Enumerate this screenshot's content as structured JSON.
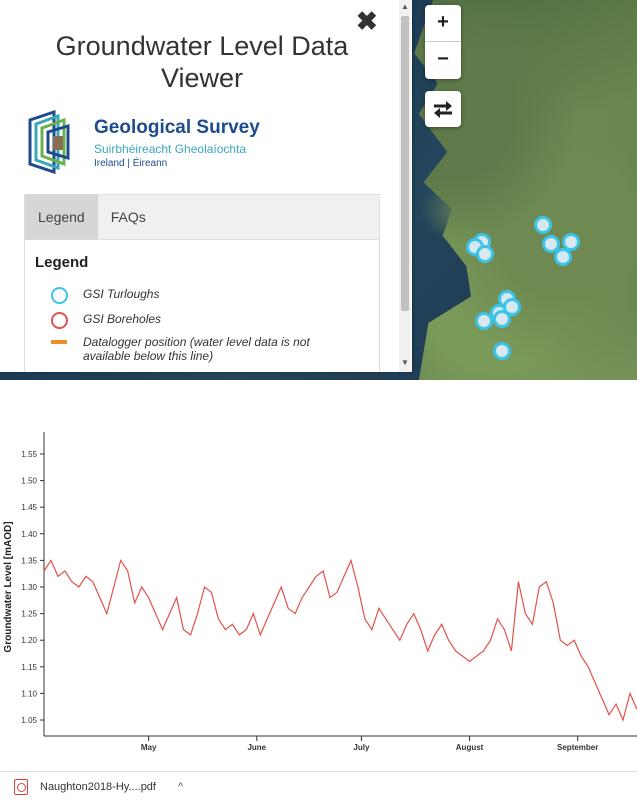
{
  "panel": {
    "title": "Groundwater Level Data Viewer",
    "logo": {
      "name_line1": "Geological Survey",
      "name_line2": "Suirbhéireacht Gheolaíochta",
      "name_line3": "Ireland | Éireann"
    },
    "tabs": [
      {
        "label": "Legend",
        "active": true
      },
      {
        "label": "FAQs",
        "active": false
      }
    ],
    "legend": {
      "heading": "Legend",
      "items": [
        {
          "label": "GSI Turloughs",
          "color": "#3cc3e8"
        },
        {
          "label": "GSI Boreholes",
          "color": "#e0524a"
        },
        {
          "label": "Datalogger position (water level data is not available below this line)",
          "color": "#f08c2a"
        }
      ]
    }
  },
  "map_controls": {
    "zoom_in": "+",
    "zoom_out": "−"
  },
  "chart_data": {
    "type": "line",
    "ylabel": "Groundwater Level [mAOD]",
    "xlabel": "",
    "ylim": [
      1.02,
      1.58
    ],
    "yticks": [
      "1.05",
      "1.10",
      "1.15",
      "1.20",
      "1.25",
      "1.30",
      "1.35",
      "1.40",
      "1.45",
      "1.50",
      "1.55"
    ],
    "xticks": [
      {
        "label": "May",
        "day": 30
      },
      {
        "label": "June",
        "day": 61
      },
      {
        "label": "July",
        "day": 91
      },
      {
        "label": "August",
        "day": 122
      },
      {
        "label": "September",
        "day": 153
      }
    ],
    "xlim": [
      0,
      170
    ],
    "line_color": "#e0524a",
    "series": [
      {
        "x": [
          0,
          2,
          4,
          6,
          8,
          10,
          12,
          14,
          16,
          18,
          20,
          22,
          24,
          26,
          28,
          30,
          32,
          34,
          36,
          38,
          40,
          42,
          44,
          46,
          48,
          50,
          52,
          54,
          56,
          58,
          60,
          62,
          64,
          66,
          68,
          70,
          72,
          74,
          76,
          78,
          80,
          82,
          84,
          86,
          88,
          90,
          92,
          94,
          96,
          98,
          100,
          102,
          104,
          106,
          108,
          110,
          112,
          114,
          116,
          118,
          120,
          122,
          124,
          126,
          128,
          130,
          132,
          134,
          136,
          138,
          140,
          142,
          144,
          146,
          148,
          150,
          152,
          154,
          156,
          158,
          160,
          162,
          164,
          166,
          168,
          170
        ],
        "y": [
          1.33,
          1.35,
          1.32,
          1.33,
          1.31,
          1.3,
          1.32,
          1.31,
          1.28,
          1.25,
          1.3,
          1.35,
          1.33,
          1.27,
          1.3,
          1.28,
          1.25,
          1.22,
          1.25,
          1.28,
          1.22,
          1.21,
          1.25,
          1.3,
          1.29,
          1.24,
          1.22,
          1.23,
          1.21,
          1.22,
          1.25,
          1.21,
          1.24,
          1.27,
          1.3,
          1.26,
          1.25,
          1.28,
          1.3,
          1.32,
          1.33,
          1.28,
          1.29,
          1.32,
          1.35,
          1.3,
          1.24,
          1.22,
          1.26,
          1.24,
          1.22,
          1.2,
          1.23,
          1.25,
          1.22,
          1.18,
          1.21,
          1.23,
          1.2,
          1.18,
          1.17,
          1.16,
          1.17,
          1.18,
          1.2,
          1.24,
          1.22,
          1.18,
          1.31,
          1.25,
          1.23,
          1.3,
          1.31,
          1.27,
          1.2,
          1.19,
          1.2,
          1.17,
          1.15,
          1.12,
          1.09,
          1.06,
          1.08,
          1.05,
          1.1,
          1.07
        ]
      }
    ]
  },
  "downloads": {
    "file_name": "Naughton2018-Hy....pdf"
  }
}
